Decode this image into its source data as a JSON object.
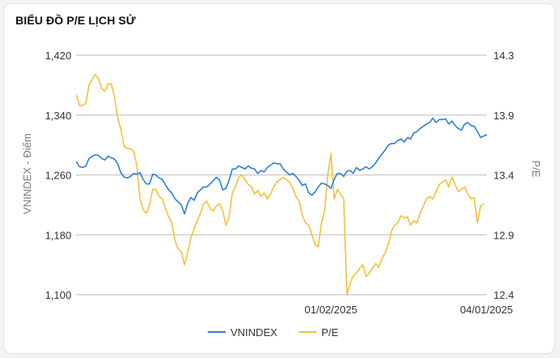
{
  "title": "BIỂU ĐỒ P/E LỊCH SỬ",
  "colors": {
    "vnindex": "#2f7fd8",
    "pe": "#f5c13a",
    "grid": "#c8c8c8",
    "axis_text": "#333333",
    "axis_title": "#7a7a7a"
  },
  "chart_data": {
    "type": "line",
    "title": "BIỂU ĐỒ P/E LỊCH SỬ",
    "y_left": {
      "label": "VNINDEX - Điểm",
      "ticks": [
        1100,
        1180,
        1260,
        1340,
        1420
      ],
      "tick_labels": [
        "1,100",
        "1,180",
        "1,260",
        "1,340",
        "1,420"
      ],
      "range": [
        1100,
        1420
      ]
    },
    "y_right": {
      "label": "P/E",
      "ticks": [
        12.4,
        12.9,
        13.4,
        13.9,
        14.3
      ],
      "tick_labels": [
        "12.4",
        "12.9",
        "13.4",
        "13.9",
        "14.3"
      ],
      "range": [
        12.4,
        14.4
      ]
    },
    "x_labels": [
      {
        "index": 80,
        "label": "01/02/2025"
      },
      {
        "index": 140,
        "label": "04/01/2025"
      }
    ],
    "grid": true,
    "legend": {
      "placement": "bottom",
      "items": [
        "VNINDEX",
        "P/E"
      ]
    },
    "series": [
      {
        "name": "VNINDEX",
        "axis": "left",
        "values": [
          1278,
          1271,
          1270,
          1272,
          1282,
          1285,
          1287,
          1286,
          1282,
          1280,
          1285,
          1283,
          1281,
          1275,
          1263,
          1257,
          1256,
          1258,
          1262,
          1261,
          1263,
          1254,
          1248,
          1248,
          1261,
          1260,
          1256,
          1254,
          1247,
          1240,
          1236,
          1228,
          1224,
          1220,
          1208,
          1222,
          1230,
          1226,
          1236,
          1240,
          1244,
          1244,
          1248,
          1252,
          1257,
          1253,
          1240,
          1242,
          1253,
          1268,
          1268,
          1272,
          1270,
          1268,
          1272,
          1269,
          1268,
          1262,
          1266,
          1264,
          1270,
          1273,
          1276,
          1275,
          1275,
          1268,
          1264,
          1260,
          1262,
          1258,
          1253,
          1246,
          1248,
          1236,
          1233,
          1237,
          1244,
          1249,
          1248,
          1246,
          1242,
          1254,
          1262,
          1262,
          1258,
          1265,
          1266,
          1262,
          1270,
          1266,
          1268,
          1271,
          1268,
          1271,
          1276,
          1282,
          1288,
          1293,
          1300,
          1302,
          1302,
          1306,
          1308,
          1304,
          1310,
          1308,
          1316,
          1318,
          1322,
          1325,
          1328,
          1330,
          1336,
          1330,
          1334,
          1334,
          1335,
          1328,
          1332,
          1326,
          1322,
          1320,
          1328,
          1330,
          1326,
          1325,
          1318,
          1310,
          1312,
          1314
        ]
      },
      {
        "name": "P/E",
        "axis": "right",
        "values": [
          14.07,
          13.98,
          13.98,
          14.0,
          14.15,
          14.2,
          14.24,
          14.2,
          14.12,
          14.1,
          14.16,
          14.16,
          14.05,
          13.88,
          13.78,
          13.64,
          13.62,
          13.62,
          13.6,
          13.48,
          13.2,
          13.11,
          13.08,
          13.15,
          13.28,
          13.28,
          13.22,
          13.2,
          13.12,
          13.05,
          13.0,
          12.85,
          12.78,
          12.76,
          12.65,
          12.75,
          12.88,
          12.95,
          13.02,
          13.08,
          13.16,
          13.18,
          13.12,
          13.1,
          13.14,
          13.16,
          13.1,
          12.98,
          13.05,
          13.25,
          13.3,
          13.38,
          13.4,
          13.36,
          13.32,
          13.3,
          13.24,
          13.27,
          13.22,
          13.25,
          13.2,
          13.24,
          13.3,
          13.34,
          13.36,
          13.38,
          13.36,
          13.34,
          13.29,
          13.22,
          13.18,
          13.06,
          13.0,
          12.98,
          12.9,
          12.82,
          12.8,
          13.0,
          13.1,
          13.4,
          13.58,
          13.2,
          13.28,
          13.24,
          13.2,
          12.4,
          12.49,
          12.56,
          12.58,
          12.62,
          12.65,
          12.55,
          12.58,
          12.62,
          12.66,
          12.63,
          12.7,
          12.75,
          12.82,
          12.93,
          12.98,
          13.0,
          13.06,
          13.04,
          13.05,
          12.98,
          13.02,
          13.0,
          13.08,
          13.14,
          13.2,
          13.22,
          13.2,
          13.26,
          13.32,
          13.34,
          13.36,
          13.3,
          13.38,
          13.32,
          13.26,
          13.28,
          13.3,
          13.24,
          13.2,
          13.21,
          13.0,
          13.14,
          13.16
        ]
      }
    ]
  }
}
